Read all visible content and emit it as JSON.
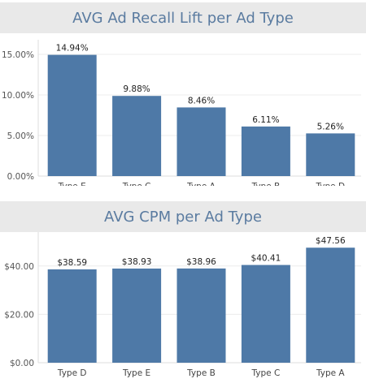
{
  "colors": {
    "bar": "#4e79a7",
    "title_text": "#5a7ba0",
    "title_bg": "#e9e9e9"
  },
  "chart_data": [
    {
      "type": "bar",
      "title": "AVG Ad Recall Lift per Ad Type",
      "categories": [
        "Type E",
        "Type C",
        "Type A",
        "Type B",
        "Type D"
      ],
      "values": [
        14.94,
        9.88,
        8.46,
        6.11,
        5.26
      ],
      "value_labels": [
        "14.94%",
        "9.88%",
        "8.46%",
        "6.11%",
        "5.26%"
      ],
      "yticks": [
        0,
        5,
        10,
        15
      ],
      "ytick_labels": [
        "0.00%",
        "5.00%",
        "10.00%",
        "15.00%"
      ],
      "ylim": [
        0,
        16.2
      ],
      "grid": true
    },
    {
      "type": "bar",
      "title": "AVG CPM per Ad Type",
      "categories": [
        "Type D",
        "Type E",
        "Type B",
        "Type C",
        "Type A"
      ],
      "values": [
        38.59,
        38.93,
        38.96,
        40.41,
        47.56
      ],
      "value_labels": [
        "$38.59",
        "$38.93",
        "$38.96",
        "$40.41",
        "$47.56"
      ],
      "yticks": [
        0,
        20,
        40
      ],
      "ytick_labels": [
        "$0.00",
        "$20.00",
        "$40.00"
      ],
      "ylim": [
        0,
        52
      ],
      "grid": true
    }
  ]
}
